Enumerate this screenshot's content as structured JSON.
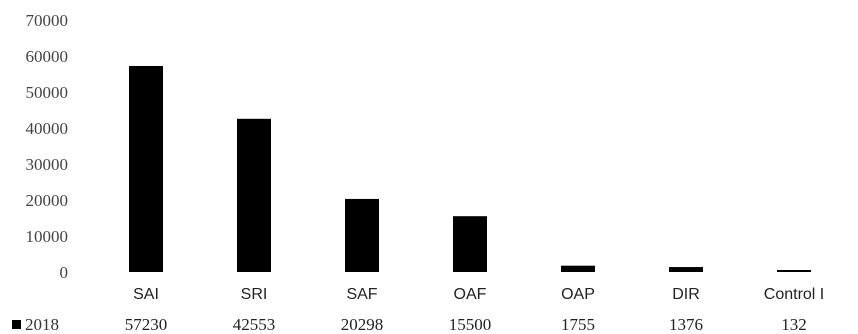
{
  "chart_data": {
    "type": "bar",
    "categories": [
      "SAI",
      "SRI",
      "SAF",
      "OAF",
      "OAP",
      "DIR",
      "Control I"
    ],
    "series": [
      {
        "name": "2018",
        "values": [
          57230,
          42553,
          20298,
          15500,
          1755,
          1376,
          132
        ],
        "color": "#000000"
      }
    ],
    "data_labels": [
      "57230",
      "42553",
      "20298",
      "15500",
      "1755",
      "1376",
      "132"
    ],
    "ylim": [
      0,
      70000
    ],
    "yticks": [
      0,
      10000,
      20000,
      30000,
      40000,
      50000,
      60000,
      70000
    ],
    "grid": false,
    "legend": "bottom-left data table"
  }
}
